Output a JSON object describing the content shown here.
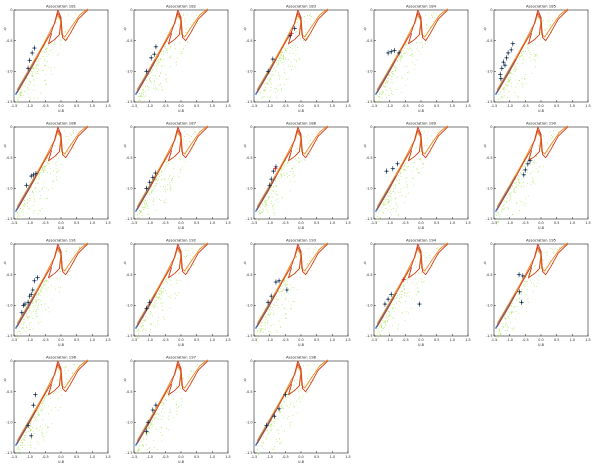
{
  "figure": {
    "columns": 5,
    "tick_labels_x": [
      "-1.5",
      "-1.0",
      "-0.5",
      "0.0",
      "0.5",
      "1.0",
      "1.5"
    ],
    "tick_labels_y": [
      "0",
      "-0.5",
      "-1.0",
      "-1.5"
    ],
    "colors": {
      "axes": "#222222",
      "field_points": "#a8e85a",
      "track_outer": "#d03a1c",
      "track_inner": "#f08a1e",
      "track_blue": "#2a7fd4",
      "members": "#0b2a4a",
      "member_red": "#d02020"
    }
  },
  "chart_data": [
    {
      "type": "scatter",
      "title": "Association 181",
      "xlabel": "U-B",
      "ylabel": "Q",
      "members": [
        [
          -1.05,
          -0.95
        ],
        [
          -1.0,
          -0.82
        ],
        [
          -0.92,
          -0.7
        ],
        [
          -0.85,
          -0.62
        ]
      ]
    },
    {
      "type": "scatter",
      "title": "Association 182",
      "xlabel": "U-B",
      "ylabel": "Q",
      "members": [
        [
          -1.1,
          -1.0
        ],
        [
          -0.95,
          -0.78
        ],
        [
          -0.85,
          -0.72
        ],
        [
          -0.8,
          -0.6
        ]
      ]
    },
    {
      "type": "scatter",
      "title": "Association 183",
      "xlabel": "U-B",
      "ylabel": "Q",
      "members": [
        [
          -1.05,
          -1.0
        ],
        [
          -0.9,
          -0.8
        ],
        [
          -0.35,
          -0.42
        ],
        [
          -0.2,
          -0.3
        ]
      ],
      "highlight": [
        [
          -0.3,
          -0.38
        ]
      ]
    },
    {
      "type": "scatter",
      "title": "Association 184",
      "xlabel": "U-B",
      "ylabel": "Q",
      "members": [
        [
          -1.05,
          -0.7
        ],
        [
          -0.95,
          -0.68
        ],
        [
          -0.85,
          -0.66
        ],
        [
          -0.7,
          -0.7
        ]
      ]
    },
    {
      "type": "scatter",
      "title": "Association 185",
      "xlabel": "U-B",
      "ylabel": "Q",
      "members": [
        [
          -1.3,
          -1.05
        ],
        [
          -1.25,
          -0.95
        ],
        [
          -1.2,
          -0.85
        ],
        [
          -1.15,
          -0.9
        ],
        [
          -1.1,
          -0.78
        ],
        [
          -1.05,
          -0.7
        ],
        [
          -0.95,
          -0.65
        ],
        [
          -0.9,
          -0.55
        ],
        [
          -1.28,
          -1.12
        ]
      ]
    },
    {
      "type": "scatter",
      "title": "Association 186",
      "xlabel": "U-B",
      "ylabel": "Q",
      "members": [
        [
          -1.1,
          -0.95
        ],
        [
          -0.95,
          -0.8
        ],
        [
          -0.88,
          -0.78
        ],
        [
          -0.8,
          -0.76
        ]
      ]
    },
    {
      "type": "scatter",
      "title": "Association 187",
      "xlabel": "U-B",
      "ylabel": "Q",
      "members": [
        [
          -1.1,
          -1.0
        ],
        [
          -1.0,
          -0.9
        ],
        [
          -0.9,
          -0.82
        ],
        [
          -0.82,
          -0.75
        ]
      ]
    },
    {
      "type": "scatter",
      "title": "Association 188",
      "xlabel": "U-B",
      "ylabel": "Q",
      "members": [
        [
          -1.0,
          -0.95
        ],
        [
          -0.95,
          -0.85
        ],
        [
          -0.88,
          -0.72
        ],
        [
          -0.8,
          -0.65
        ]
      ],
      "highlight": [
        [
          -0.82,
          -0.68
        ]
      ]
    },
    {
      "type": "scatter",
      "title": "Association 189",
      "xlabel": "U-B",
      "ylabel": "Q",
      "members": [
        [
          -1.1,
          -0.72
        ],
        [
          -0.9,
          -0.68
        ],
        [
          -0.75,
          -0.6
        ]
      ]
    },
    {
      "type": "scatter",
      "title": "Association 190",
      "xlabel": "U-B",
      "ylabel": "Q",
      "members": [
        [
          -0.55,
          -0.78
        ],
        [
          -0.42,
          -0.6
        ],
        [
          -0.35,
          -0.55
        ],
        [
          -0.5,
          -0.7
        ]
      ]
    },
    {
      "type": "scatter",
      "title": "Association 191",
      "xlabel": "U-B",
      "ylabel": "Q",
      "members": [
        [
          -1.25,
          -1.12
        ],
        [
          -1.2,
          -1.0
        ],
        [
          -1.15,
          -0.98
        ],
        [
          -1.05,
          -0.95
        ],
        [
          -1.0,
          -0.85
        ],
        [
          -0.95,
          -0.82
        ],
        [
          -0.9,
          -0.75
        ],
        [
          -0.85,
          -0.6
        ],
        [
          -0.75,
          -0.55
        ]
      ]
    },
    {
      "type": "scatter",
      "title": "Association 192",
      "xlabel": "U-B",
      "ylabel": "Q",
      "members": [
        [
          -1.1,
          -1.05
        ],
        [
          -1.0,
          -0.95
        ]
      ]
    },
    {
      "type": "scatter",
      "title": "Association 193",
      "xlabel": "U-B",
      "ylabel": "Q",
      "members": [
        [
          -1.05,
          -0.95
        ],
        [
          -0.95,
          -0.85
        ],
        [
          -0.8,
          -0.62
        ],
        [
          -0.7,
          -0.6
        ],
        [
          -0.45,
          -0.75
        ]
      ]
    },
    {
      "type": "scatter",
      "title": "Association 194",
      "xlabel": "U-B",
      "ylabel": "Q",
      "members": [
        [
          -1.15,
          -0.98
        ],
        [
          -1.05,
          -0.9
        ],
        [
          -0.95,
          -0.82
        ],
        [
          -0.05,
          -0.98
        ]
      ],
      "highlight": [
        [
          -0.55,
          -0.58
        ]
      ]
    },
    {
      "type": "scatter",
      "title": "Association 195",
      "xlabel": "U-B",
      "ylabel": "Q",
      "members": [
        [
          -0.7,
          -0.5
        ],
        [
          -0.68,
          -0.78
        ],
        [
          -0.62,
          -0.95
        ],
        [
          -0.58,
          -0.52
        ]
      ]
    },
    {
      "type": "scatter",
      "title": "Association 196",
      "xlabel": "U-B",
      "ylabel": "Q",
      "members": [
        [
          -0.82,
          -0.55
        ],
        [
          -0.88,
          -0.72
        ],
        [
          -1.05,
          -1.05
        ],
        [
          -0.95,
          -1.22
        ]
      ]
    },
    {
      "type": "scatter",
      "title": "Association 197",
      "xlabel": "U-B",
      "ylabel": "Q",
      "members": [
        [
          -0.8,
          -0.72
        ],
        [
          -0.9,
          -0.8
        ],
        [
          -1.05,
          -1.0
        ],
        [
          -1.1,
          -1.15
        ]
      ]
    },
    {
      "type": "scatter",
      "title": "Association 198",
      "xlabel": "U-B",
      "ylabel": "Q",
      "members": [
        [
          -0.5,
          -0.55
        ],
        [
          -0.7,
          -0.78
        ],
        [
          -0.85,
          -0.9
        ],
        [
          -1.1,
          -1.05
        ]
      ]
    }
  ]
}
